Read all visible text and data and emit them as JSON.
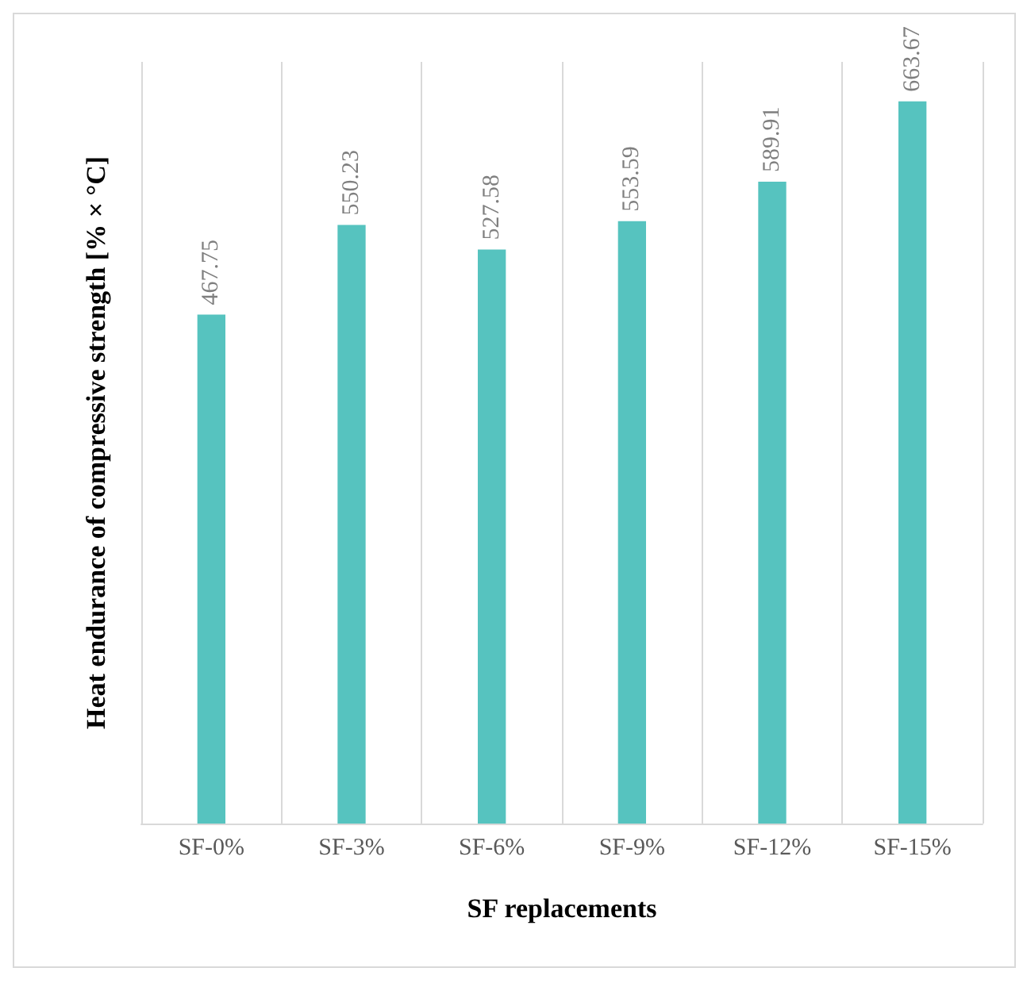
{
  "chart_data": {
    "type": "bar",
    "categories": [
      "SF-0%",
      "SF-3%",
      "SF-6%",
      "SF-9%",
      "SF-12%",
      "SF-15%"
    ],
    "values": [
      467.75,
      550.23,
      527.58,
      553.59,
      589.91,
      663.67
    ],
    "color": "#56c3bf",
    "xlabel": "SF replacements",
    "ylabel": "Heat endurance of compressive strength [% × °C]",
    "data_labels": true,
    "grid": "x"
  }
}
